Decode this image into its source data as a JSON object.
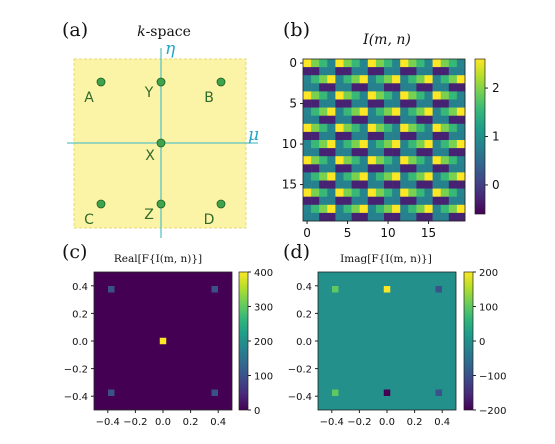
{
  "colors": {
    "viridis": [
      "#440154",
      "#482878",
      "#3e4989",
      "#31688e",
      "#26828e",
      "#1f9e89",
      "#35b779",
      "#6ece58",
      "#b5de2b",
      "#fde725"
    ],
    "kspace_fill": "#fbf3a6",
    "kspace_axis": "#5ec3c3",
    "kpoint_fill": "#3fa34d",
    "kpoint_label": "#2f6b2a"
  },
  "chart_data": [
    {
      "id": "a",
      "type": "scatter",
      "panel_letter": "(a)",
      "title": "k-space",
      "title_italic_part": "k",
      "title_rest": "-space",
      "axis_labels": {
        "horizontal": "μ",
        "vertical": "η"
      },
      "points": [
        {
          "label": "A",
          "x": -1,
          "y": 1
        },
        {
          "label": "Y",
          "x": 0,
          "y": 1
        },
        {
          "label": "B",
          "x": 1,
          "y": 1
        },
        {
          "label": "X",
          "x": 0,
          "y": 0
        },
        {
          "label": "C",
          "x": -1,
          "y": -1
        },
        {
          "label": "Z",
          "x": 0,
          "y": -1
        },
        {
          "label": "D",
          "x": 1,
          "y": -1
        }
      ],
      "xlim": [
        -1.5,
        1.5
      ],
      "ylim": [
        -1.5,
        1.5
      ]
    },
    {
      "id": "b",
      "type": "heatmap",
      "panel_letter": "(b)",
      "title": "I(m, n)",
      "rows": 20,
      "cols": 20,
      "xticks": [
        "0",
        "5",
        "10",
        "15"
      ],
      "yticks": [
        "0",
        "5",
        "10",
        "15"
      ],
      "colorbar": {
        "min": -0.6,
        "max": 2.6,
        "ticks": [
          "0",
          "1",
          "2"
        ],
        "tick_values": [
          0,
          1,
          2
        ]
      }
    },
    {
      "id": "c",
      "type": "heatmap",
      "panel_letter": "(c)",
      "title": "Real[F{I(m, n)}]",
      "xlim": [
        -0.5,
        0.5
      ],
      "ylim": [
        -0.5,
        0.5
      ],
      "xticks": [
        "−0.4",
        "−0.2",
        "0.0",
        "0.2",
        "0.4"
      ],
      "xtick_values": [
        -0.4,
        -0.2,
        0.0,
        0.2,
        0.4
      ],
      "yticks": [
        "0.4",
        "0.2",
        "0.0",
        "−0.2",
        "−0.4"
      ],
      "ytick_values": [
        0.4,
        0.2,
        0.0,
        -0.2,
        -0.4
      ],
      "background_value": 0,
      "peaks": [
        {
          "x": 0.0,
          "y": 0.0,
          "value": 400
        },
        {
          "x": -0.375,
          "y": 0.375,
          "value": 100
        },
        {
          "x": 0.375,
          "y": 0.375,
          "value": 100
        },
        {
          "x": -0.375,
          "y": -0.375,
          "value": 100
        },
        {
          "x": 0.375,
          "y": -0.375,
          "value": 100
        }
      ],
      "colorbar": {
        "min": 0,
        "max": 400,
        "ticks": [
          "0",
          "100",
          "200",
          "300",
          "400"
        ],
        "tick_values": [
          0,
          100,
          200,
          300,
          400
        ]
      }
    },
    {
      "id": "d",
      "type": "heatmap",
      "panel_letter": "(d)",
      "title": "Imag[F{I(m, n)}]",
      "xlim": [
        -0.5,
        0.5
      ],
      "ylim": [
        -0.5,
        0.5
      ],
      "xticks": [
        "−0.4",
        "−0.2",
        "0.0",
        "0.2",
        "0.4"
      ],
      "xtick_values": [
        -0.4,
        -0.2,
        0.0,
        0.2,
        0.4
      ],
      "yticks": [
        "0.4",
        "0.2",
        "0.0",
        "−0.2",
        "−0.4"
      ],
      "ytick_values": [
        0.4,
        0.2,
        0.0,
        -0.2,
        -0.4
      ],
      "background_value": 0,
      "peaks": [
        {
          "x": -0.375,
          "y": 0.375,
          "value": 100
        },
        {
          "x": 0.0,
          "y": 0.375,
          "value": 200
        },
        {
          "x": 0.375,
          "y": 0.375,
          "value": -100
        },
        {
          "x": -0.375,
          "y": -0.375,
          "value": 100
        },
        {
          "x": 0.0,
          "y": -0.375,
          "value": -200
        },
        {
          "x": 0.375,
          "y": -0.375,
          "value": -100
        }
      ],
      "colorbar": {
        "min": -200,
        "max": 200,
        "ticks": [
          "200",
          "100",
          "0",
          "−100",
          "−200"
        ],
        "tick_values": [
          200,
          100,
          0,
          -100,
          -200
        ]
      }
    }
  ]
}
